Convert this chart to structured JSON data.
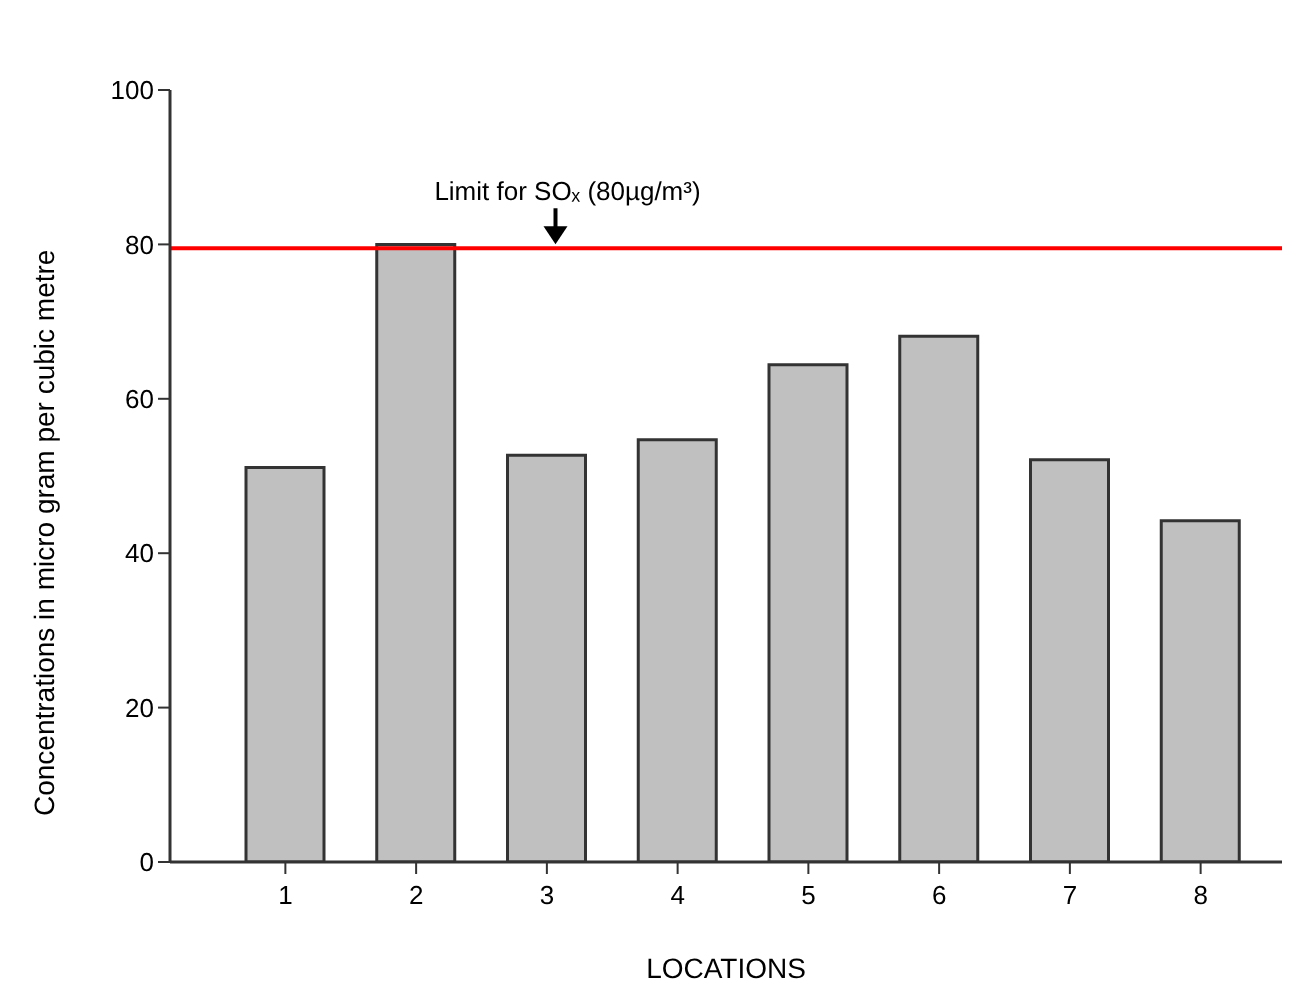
{
  "chart_data": {
    "type": "bar",
    "xlabel": "LOCATIONS",
    "ylabel": "Concentrations in micro gram per cubic metre",
    "categories": [
      "1",
      "2",
      "3",
      "4",
      "5",
      "6",
      "7",
      "8"
    ],
    "values": [
      51.1,
      80,
      52.7,
      54.7,
      64.4,
      68.1,
      52.1,
      44.2
    ],
    "color": "#c0c0c0",
    "ylim": [
      0,
      100
    ],
    "yticks": [
      0,
      20,
      40,
      60,
      80,
      100
    ],
    "ref_lines": [
      {
        "axis": "y",
        "value": 79.5,
        "label": "Limit for SOₓ (80µg/m³)",
        "color": "#ff0000",
        "line_style": "solid"
      }
    ],
    "grid": false
  }
}
